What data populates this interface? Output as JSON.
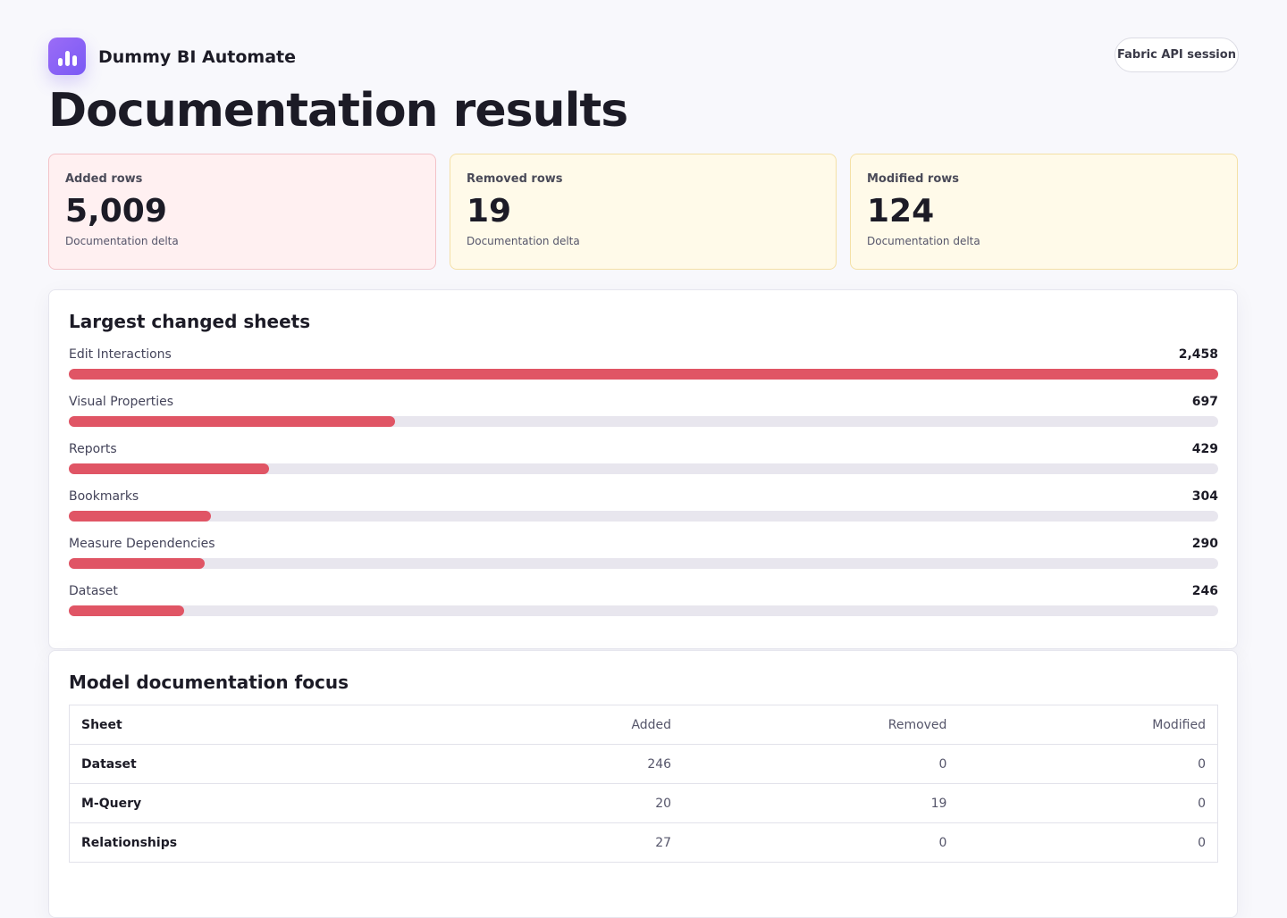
{
  "header": {
    "app_name": "Dummy BI Automate",
    "session_button": "Fabric API session",
    "title": "Documentation results"
  },
  "cards": [
    {
      "label": "Added rows",
      "value": "5,009",
      "note": "Documentation delta"
    },
    {
      "label": "Removed rows",
      "value": "19",
      "note": "Documentation delta"
    },
    {
      "label": "Modified rows",
      "value": "124",
      "note": "Documentation delta"
    }
  ],
  "sheets_panel": {
    "title": "Largest changed sheets",
    "categories": [
      "Edit Interactions",
      "Visual Properties",
      "Reports",
      "Bookmarks",
      "Measure Dependencies",
      "Dataset"
    ],
    "values": [
      2458,
      697,
      429,
      304,
      290,
      246
    ],
    "value_labels": [
      "2,458",
      "697",
      "429",
      "304",
      "290",
      "246"
    ]
  },
  "table_panel": {
    "title": "Model documentation focus",
    "columns": [
      "Sheet",
      "Added",
      "Removed",
      "Modified"
    ],
    "rows": [
      [
        "Dataset",
        "246",
        "0",
        "0"
      ],
      [
        "M-Query",
        "20",
        "19",
        "0"
      ],
      [
        "Relationships",
        "27",
        "0",
        "0"
      ]
    ]
  }
}
